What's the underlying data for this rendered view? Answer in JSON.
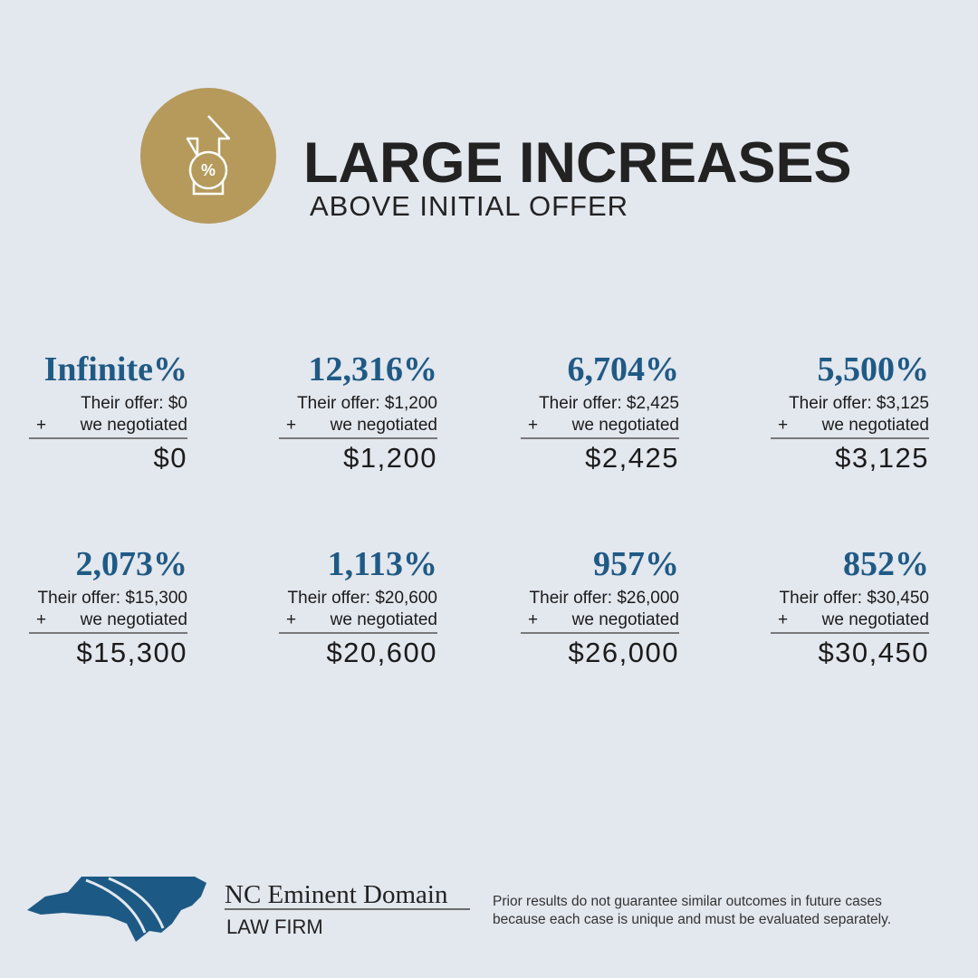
{
  "header": {
    "title": "LARGE INCREASES",
    "subtitle": "ABOVE INITIAL OFFER"
  },
  "cards": [
    {
      "percent": "Infinite%",
      "offer": "Their offer: $0",
      "plus": "+",
      "negotiated": "we negotiated",
      "amount": "$0"
    },
    {
      "percent": "12,316%",
      "offer": "Their offer: $1,200",
      "plus": "+",
      "negotiated": "we negotiated",
      "amount": "$1,200"
    },
    {
      "percent": "6,704%",
      "offer": "Their offer: $2,425",
      "plus": "+",
      "negotiated": "we negotiated",
      "amount": "$2,425"
    },
    {
      "percent": "5,500%",
      "offer": "Their offer: $3,125",
      "plus": "+",
      "negotiated": "we negotiated",
      "amount": "$3,125"
    },
    {
      "percent": "2,073%",
      "offer": "Their offer: $15,300",
      "plus": "+",
      "negotiated": "we negotiated",
      "amount": "$15,300"
    },
    {
      "percent": "1,113%",
      "offer": "Their offer: $20,600",
      "plus": "+",
      "negotiated": "we negotiated",
      "amount": "$20,600"
    },
    {
      "percent": "957%",
      "offer": "Their offer: $26,000",
      "plus": "+",
      "negotiated": "we negotiated",
      "amount": "$26,000"
    },
    {
      "percent": "852%",
      "offer": "Their offer: $30,450",
      "plus": "+",
      "negotiated": "we negotiated",
      "amount": "$30,450"
    }
  ],
  "footer": {
    "brand": "NC Eminent Domain",
    "subbrand": "LAW FIRM",
    "disclaimer": [
      "Prior results do not guarantee similar outcomes in future cases",
      "because each case is unique and must be evaluated separately."
    ]
  }
}
